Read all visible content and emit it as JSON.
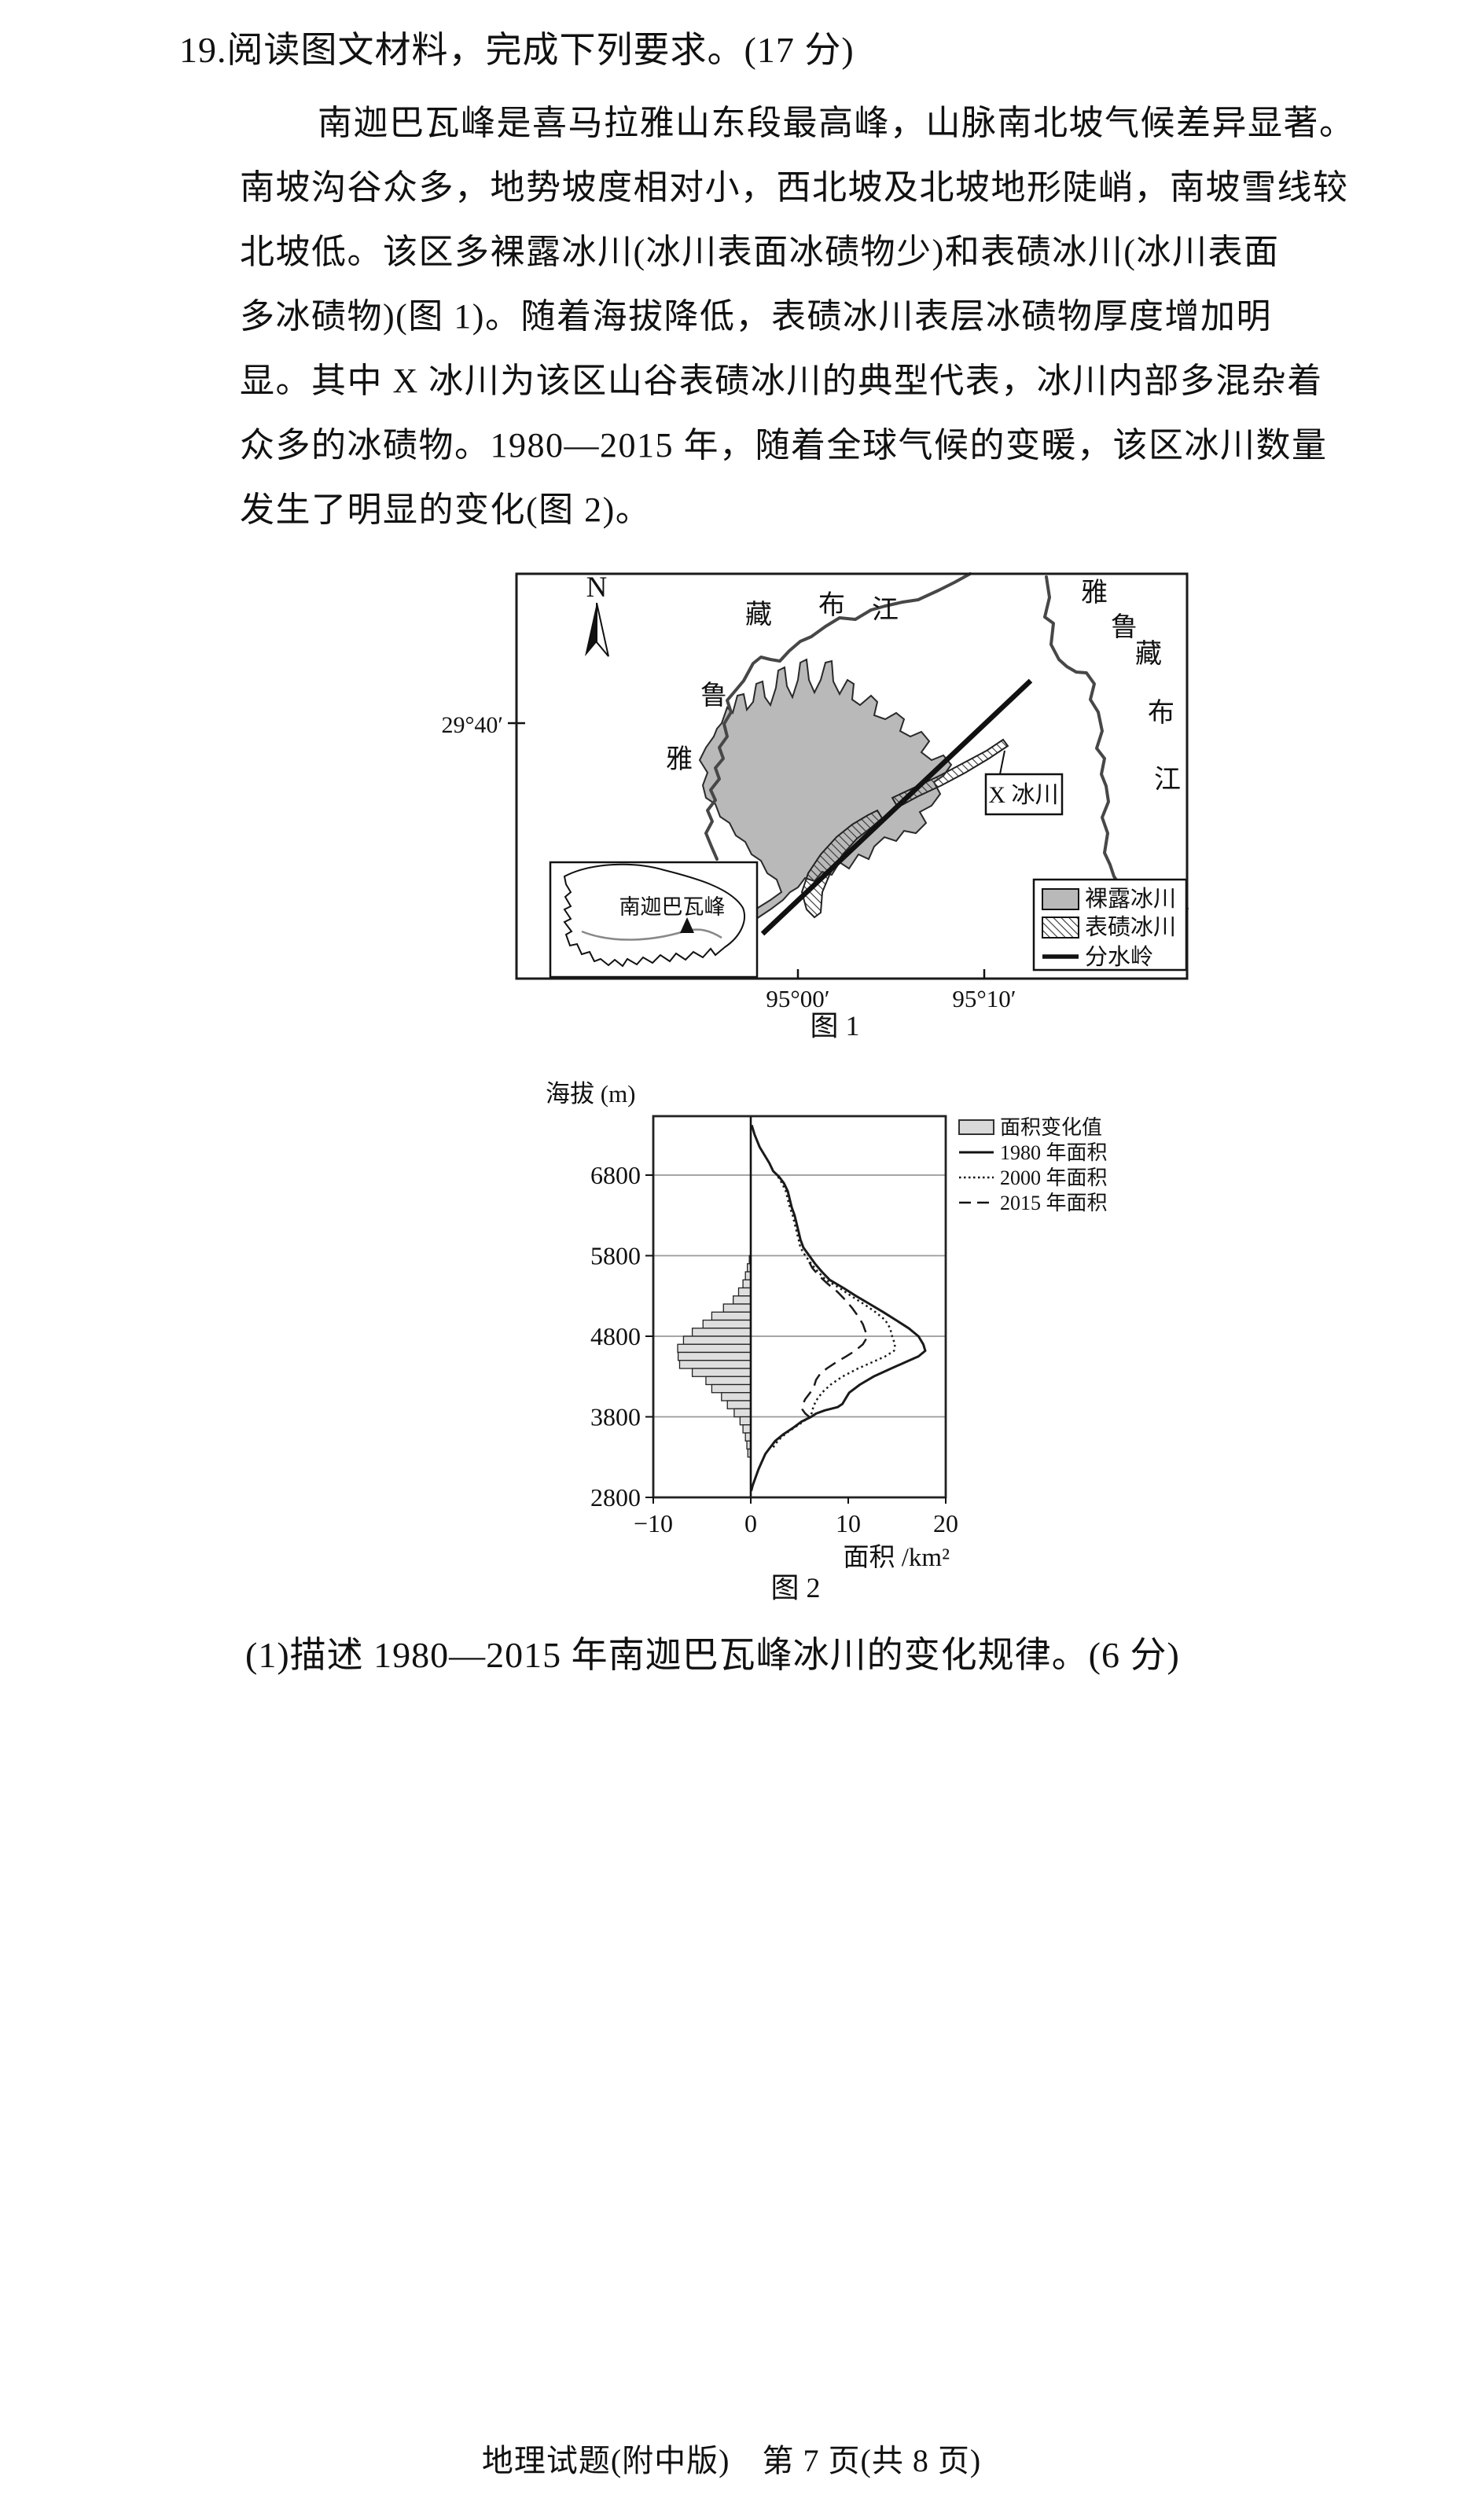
{
  "question": {
    "header": "19.阅读图文材料，完成下列要求。(17 分)",
    "sub1": "(1)描述 1980—2015 年南迦巴瓦峰冰川的变化规律。(6 分)"
  },
  "intro": {
    "lines": [
      "南迦巴瓦峰是喜马拉雅山东段最高峰，山脉南北坡气候差异显著。",
      "南坡沟谷众多，地势坡度相对小，西北坡及北坡地形陡峭，南坡雪线较",
      "北坡低。该区多裸露冰川(冰川表面冰碛物少)和表碛冰川(冰川表面",
      "多冰碛物)(图 1)。随着海拔降低，表碛冰川表层冰碛物厚度增加明",
      "显。其中 X 冰川为该区山谷表碛冰川的典型代表，冰川内部多混杂着",
      "众多的冰碛物。1980—2015 年，随着全球气候的变暖，该区冰川数量",
      "发生了明显的变化(图 2)。"
    ]
  },
  "figure1": {
    "caption": "图 1",
    "compass": "N",
    "lat_tick": "29°40′",
    "lon_ticks": [
      "95°00′",
      "95°10′"
    ],
    "left_river": [
      "雅",
      "鲁",
      "藏",
      "布",
      "江"
    ],
    "right_river": [
      "雅",
      "鲁",
      "藏",
      "布",
      "江"
    ],
    "x_glacier": "X 冰川",
    "inset_peak": "南迦巴瓦峰",
    "legend": {
      "bare": "裸露冰川",
      "debris": "表碛冰川",
      "divide": "分水岭"
    },
    "colors": {
      "bare_fill": "#b9b9b9",
      "outline": "#1a1a1a",
      "river": "#474747"
    }
  },
  "chart_data": {
    "type": "composite",
    "title": "图 2",
    "ylabel": "海拔 (m)",
    "xlabel": "面积 /km²",
    "x_ticks": [
      -10,
      0,
      10,
      20
    ],
    "y_ticks": [
      2800,
      3800,
      4800,
      5800,
      6800
    ],
    "xlim": [
      -10,
      20
    ],
    "ylim": [
      2800,
      7530
    ],
    "grid": "horizontal",
    "legend_position": "top-right",
    "bars": {
      "label": "面积变化值",
      "bin_top_start": 5800,
      "bin_size": 100,
      "values": [
        -0.15,
        -0.35,
        -0.55,
        -0.8,
        -1.25,
        -1.8,
        -2.8,
        -4.0,
        -4.9,
        -6.0,
        -6.9,
        -7.5,
        -7.45,
        -7.3,
        -6.0,
        -4.6,
        -4.0,
        -3.0,
        -2.4,
        -1.7,
        -1.1,
        -0.8,
        -0.55,
        -0.4,
        -0.3
      ]
    },
    "series": [
      {
        "name": "1980 年面积",
        "style": "solid",
        "points": [
          [
            7420,
            0.1
          ],
          [
            7300,
            0.4
          ],
          [
            7150,
            0.9
          ],
          [
            7050,
            1.4
          ],
          [
            6950,
            1.9
          ],
          [
            6850,
            2.3
          ],
          [
            6780,
            2.9
          ],
          [
            6700,
            3.4
          ],
          [
            6600,
            3.8
          ],
          [
            6500,
            4.0
          ],
          [
            6400,
            4.2
          ],
          [
            6300,
            4.5
          ],
          [
            6200,
            4.7
          ],
          [
            6100,
            4.9
          ],
          [
            6000,
            5.1
          ],
          [
            5900,
            5.4
          ],
          [
            5800,
            6.0
          ],
          [
            5700,
            6.6
          ],
          [
            5600,
            7.3
          ],
          [
            5500,
            8.1
          ],
          [
            5400,
            9.5
          ],
          [
            5300,
            10.8
          ],
          [
            5200,
            12.2
          ],
          [
            5100,
            13.6
          ],
          [
            5000,
            14.9
          ],
          [
            4900,
            16.2
          ],
          [
            4800,
            17.2
          ],
          [
            4700,
            17.7
          ],
          [
            4620,
            17.9
          ],
          [
            4550,
            17.2
          ],
          [
            4480,
            15.9
          ],
          [
            4400,
            14.4
          ],
          [
            4300,
            12.6
          ],
          [
            4200,
            11.2
          ],
          [
            4100,
            10.1
          ],
          [
            4020,
            9.7
          ],
          [
            3960,
            9.4
          ],
          [
            3920,
            8.9
          ],
          [
            3880,
            7.6
          ],
          [
            3840,
            6.7
          ],
          [
            3800,
            6.2
          ],
          [
            3740,
            5.2
          ],
          [
            3660,
            4.3
          ],
          [
            3580,
            3.3
          ],
          [
            3500,
            2.5
          ],
          [
            3420,
            2.0
          ],
          [
            3340,
            1.5
          ],
          [
            3260,
            1.2
          ],
          [
            3150,
            0.8
          ],
          [
            3050,
            0.5
          ],
          [
            2950,
            0.2
          ],
          [
            2880,
            0.05
          ]
        ]
      },
      {
        "name": "2000 年面积",
        "style": "dotted",
        "points": [
          [
            6780,
            2.8
          ],
          [
            6700,
            3.2
          ],
          [
            6600,
            3.6
          ],
          [
            6500,
            3.8
          ],
          [
            6400,
            4.0
          ],
          [
            6300,
            4.3
          ],
          [
            6200,
            4.5
          ],
          [
            6100,
            4.7
          ],
          [
            6000,
            4.9
          ],
          [
            5900,
            5.1
          ],
          [
            5800,
            5.6
          ],
          [
            5700,
            6.2
          ],
          [
            5600,
            6.9
          ],
          [
            5500,
            7.7
          ],
          [
            5400,
            9.1
          ],
          [
            5300,
            10.3
          ],
          [
            5200,
            11.6
          ],
          [
            5100,
            12.8
          ],
          [
            5000,
            13.8
          ],
          [
            4900,
            14.3
          ],
          [
            4800,
            14.5
          ],
          [
            4700,
            14.8
          ],
          [
            4620,
            14.7
          ],
          [
            4550,
            13.8
          ],
          [
            4480,
            12.5
          ],
          [
            4400,
            11.0
          ],
          [
            4300,
            9.4
          ],
          [
            4200,
            8.2
          ],
          [
            4100,
            7.3
          ],
          [
            4000,
            6.7
          ],
          [
            3920,
            6.4
          ],
          [
            3860,
            6.3
          ],
          [
            3800,
            6.1
          ],
          [
            3760,
            5.6
          ],
          [
            3700,
            4.9
          ],
          [
            3620,
            3.9
          ],
          [
            3540,
            3.1
          ],
          [
            3460,
            2.5
          ],
          [
            3400,
            2.2
          ]
        ]
      },
      {
        "name": "2015 年面积",
        "style": "dashed",
        "points": [
          [
            5720,
            6.0
          ],
          [
            5650,
            6.3
          ],
          [
            5550,
            7.0
          ],
          [
            5450,
            7.9
          ],
          [
            5350,
            8.9
          ],
          [
            5250,
            9.7
          ],
          [
            5150,
            10.4
          ],
          [
            5050,
            11.0
          ],
          [
            4950,
            11.5
          ],
          [
            4850,
            11.8
          ],
          [
            4780,
            11.9
          ],
          [
            4700,
            11.5
          ],
          [
            4620,
            10.7
          ],
          [
            4550,
            9.8
          ],
          [
            4480,
            8.8
          ],
          [
            4400,
            7.8
          ],
          [
            4330,
            7.1
          ],
          [
            4260,
            6.7
          ],
          [
            4180,
            6.5
          ],
          [
            4100,
            6.1
          ],
          [
            4020,
            5.6
          ],
          [
            3950,
            5.3
          ],
          [
            3890,
            5.3
          ],
          [
            3840,
            5.6
          ],
          [
            3800,
            6.0
          ]
        ]
      }
    ]
  },
  "footer": "地理试题(附中版)　第 7 页(共 8 页)"
}
